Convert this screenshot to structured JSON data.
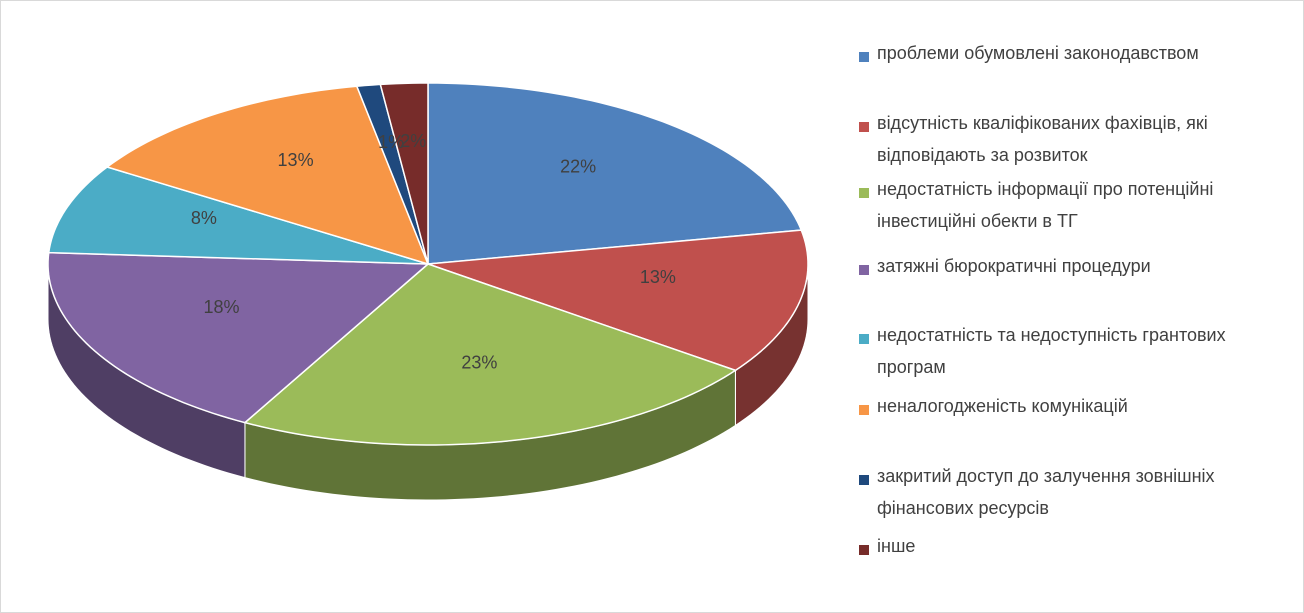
{
  "chart_data": {
    "type": "pie3d",
    "categories": [
      "проблеми обумовлені законодавством",
      "відсутність кваліфікованих фахівців, які відповідають за розвиток",
      "недостатність інформації про потенційні інвестиційні  обекти в ТГ",
      "затяжні бюрократичні процедури",
      "недостатність та недоступність грантових програм",
      "неналогодженість комунікацій",
      "закритий доступ до залучення зовнішніх фінансових ресурсів",
      "інше"
    ],
    "values": [
      22,
      13,
      23,
      18,
      8,
      13,
      1,
      2
    ],
    "value_labels": [
      "22%",
      "13%",
      "23%",
      "18%",
      "8%",
      "13%",
      "1%",
      "2%"
    ],
    "colors": [
      "#4f81bd",
      "#c0504d",
      "#9bbb59",
      "#8064a2",
      "#4bacc6",
      "#f79646",
      "#1f497d",
      "#772c2a"
    ],
    "legend": "right"
  }
}
